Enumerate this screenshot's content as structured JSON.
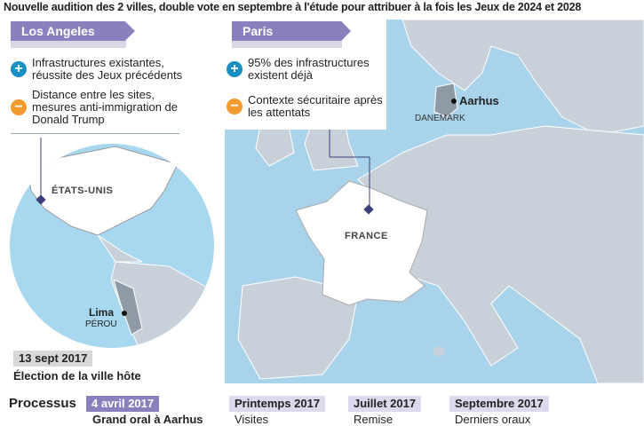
{
  "title": "Nouvelle audition des 2 villes,  double vote en septembre à l'étude pour attribuer à la fois les Jeux de 2024 et 2028",
  "colors": {
    "accent": "#8a80be",
    "plus": "#1a8fc3",
    "minus": "#f29a2e",
    "sea": "#a8d3ea",
    "land": "#c8d1d9"
  },
  "los_angeles": {
    "name": "Los Angeles",
    "plus": "Infrastructures existantes, réussite des Jeux précédents",
    "minus": "Distance entre les sites, mesures anti-immigration de Donald Trump",
    "plus_icon": "plus-circle-icon",
    "minus_icon": "minus-circle-icon"
  },
  "paris": {
    "name": "Paris",
    "plus": "95% des infrastructures existent déjà",
    "minus": "Contexte sécuritaire après les attentats"
  },
  "map": {
    "france": "FRANCE",
    "aarhus": "Aarhus",
    "danemark": "DANEMARK",
    "usa": "ÉTATS-UNIS",
    "lima": "Lima",
    "perou": "PÉROU"
  },
  "election": {
    "date": "13 sept 2017",
    "label": "Élection de la ville hôte"
  },
  "process": {
    "title": "Processus",
    "steps": [
      {
        "date": "4 avril 2017",
        "text": "Grand oral à Aarhus"
      },
      {
        "date": "Printemps 2017",
        "text": "Visites"
      },
      {
        "date": "Juillet 2017",
        "text": "Remise"
      },
      {
        "date": "Septembre 2017",
        "text": "Derniers oraux"
      }
    ]
  }
}
